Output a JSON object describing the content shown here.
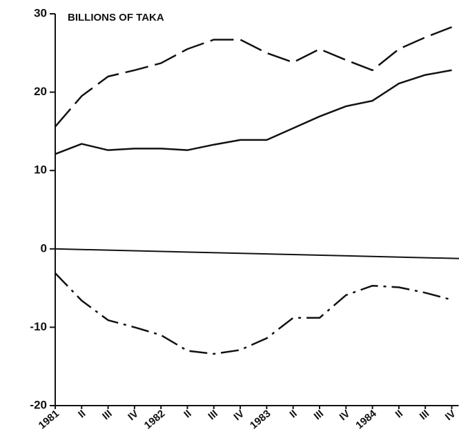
{
  "chart_data": {
    "type": "line",
    "y_label": "BILLIONS OF TAKA",
    "categories": [
      "1981",
      "II",
      "III",
      "IV",
      "1982",
      "II",
      "III",
      "IV",
      "1983",
      "II",
      "III",
      "IV",
      "1984",
      "II",
      "III",
      "IV"
    ],
    "series": [
      {
        "color": "#111111",
        "style": "dashed",
        "values": [
          15.6,
          19.5,
          22,
          22.8,
          23.7,
          25.5,
          26.7,
          26.7,
          25,
          23.8,
          25.5,
          24.1,
          22.8,
          25.5,
          27,
          28.3
        ]
      },
      {
        "color": "#111111",
        "style": "solid",
        "values": [
          12.1,
          13.4,
          12.6,
          12.8,
          12.8,
          12.6,
          13.3,
          13.9,
          13.9,
          15.4,
          16.9,
          18.2,
          18.9,
          21.1,
          22.2,
          22.8
        ]
      },
      {
        "color": "#111111",
        "style": "dashdot",
        "values": [
          -3.1,
          -6.6,
          -9.1,
          -10,
          -11,
          -13,
          -13.4,
          -12.9,
          -11.4,
          -8.8,
          -8.8,
          -5.9,
          -4.7,
          -4.9,
          -5.6,
          -6.5
        ]
      }
    ],
    "ylim": [
      -20,
      30
    ],
    "yticks": [
      -20,
      -10,
      0,
      10,
      20,
      30
    ],
    "zero_line": true,
    "grid": false
  }
}
